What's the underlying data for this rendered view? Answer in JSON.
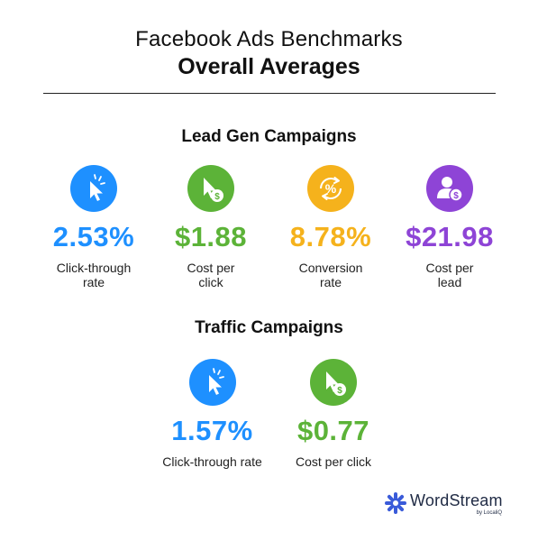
{
  "header": {
    "title": "Facebook Ads Benchmarks",
    "subtitle": "Overall Averages"
  },
  "lead_gen": {
    "title": "Lead Gen Campaigns",
    "stats": [
      {
        "value": "2.53%",
        "label_line1": "Click-through",
        "label_line2": "rate",
        "color": "#1E90FF",
        "icon": "cursor-icon"
      },
      {
        "value": "$1.88",
        "label_line1": "Cost per",
        "label_line2": "click",
        "color": "#5CB338",
        "icon": "cursor-dollar-icon"
      },
      {
        "value": "8.78%",
        "label_line1": "Conversion",
        "label_line2": "rate",
        "color": "#F5B21C",
        "icon": "percent-cycle-icon"
      },
      {
        "value": "$21.98",
        "label_line1": "Cost per",
        "label_line2": "lead",
        "color": "#8E44D6",
        "icon": "user-dollar-icon"
      }
    ]
  },
  "traffic": {
    "title": "Traffic Campaigns",
    "stats": [
      {
        "value": "1.57%",
        "label": "Click-through rate",
        "color": "#1E90FF",
        "icon": "cursor-icon"
      },
      {
        "value": "$0.77",
        "label": "Cost per click",
        "color": "#5CB338",
        "icon": "cursor-dollar-icon"
      }
    ]
  },
  "logo": {
    "name": "WordStream",
    "byline": "by LocaliQ",
    "color": "#3A5BD9"
  }
}
